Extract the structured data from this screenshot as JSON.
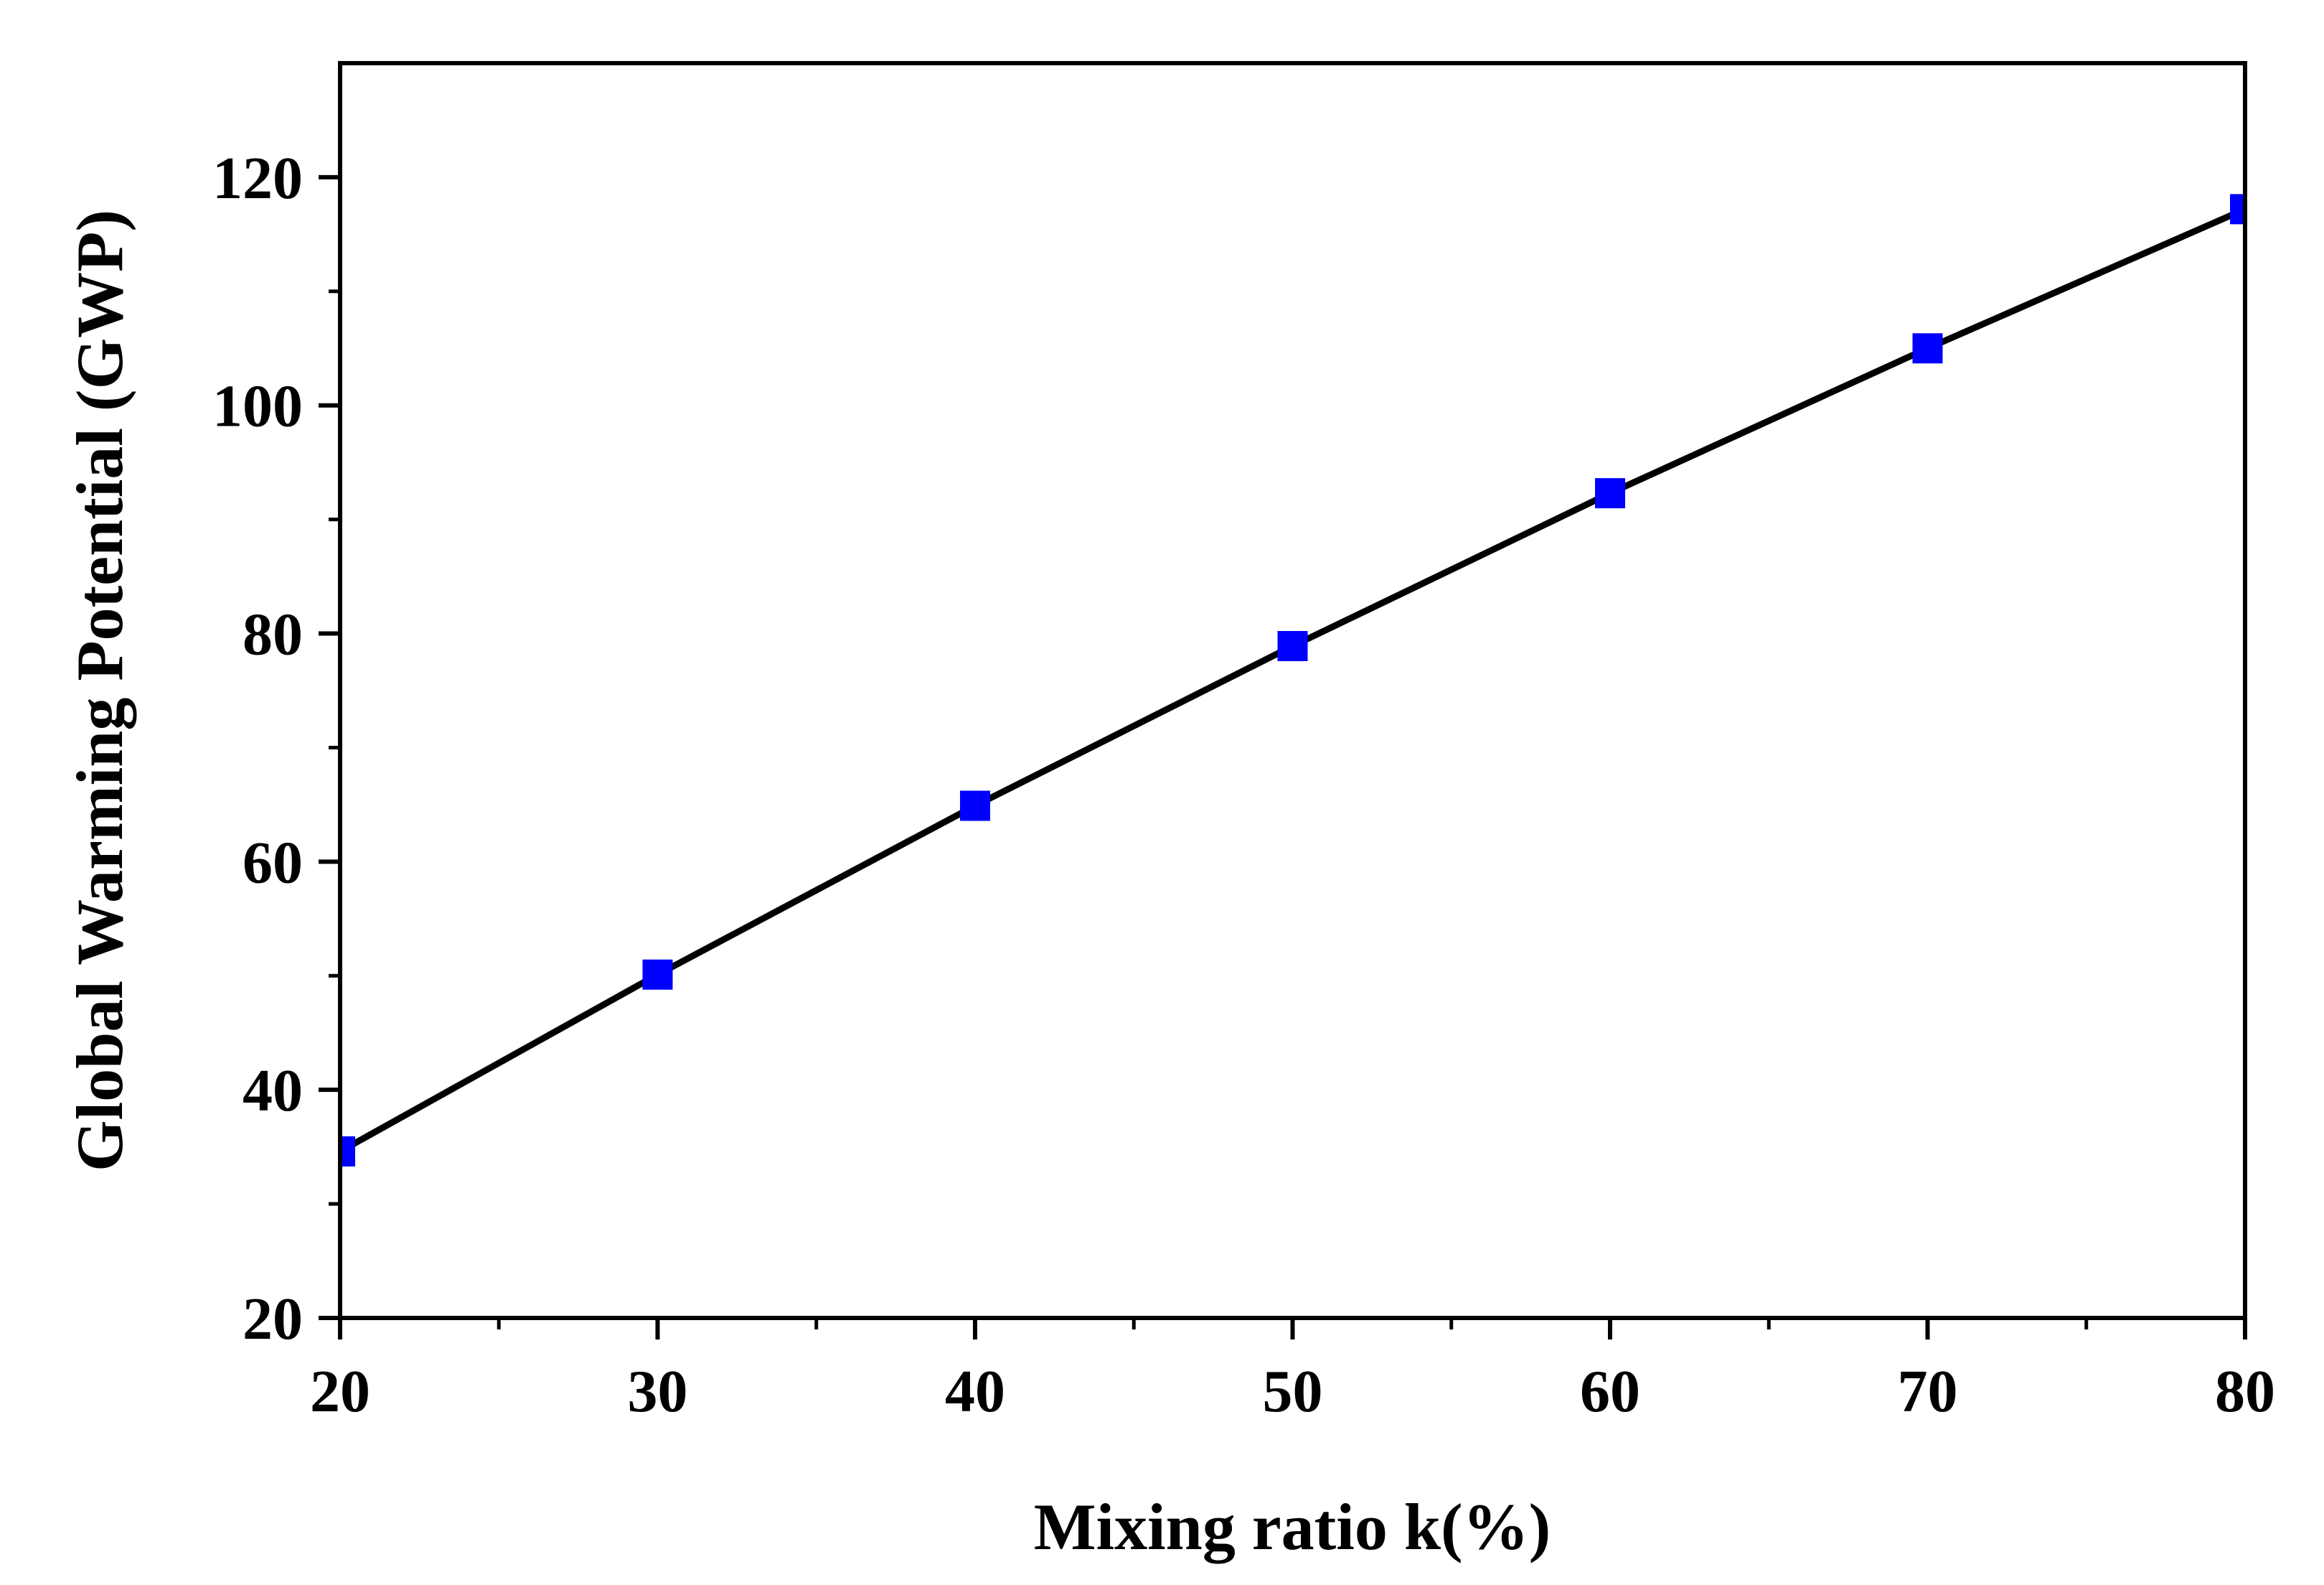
{
  "chart_data": {
    "type": "line",
    "title": "",
    "xlabel": "Mixing ratio k(%)",
    "ylabel": "Global Warming Potential (GWP)",
    "xlim": [
      20,
      80
    ],
    "ylim": [
      20,
      130
    ],
    "x_ticks": [
      20,
      30,
      40,
      50,
      60,
      70,
      80
    ],
    "y_ticks": [
      20,
      40,
      60,
      80,
      100,
      120
    ],
    "x_tick_labels": [
      "20",
      "30",
      "40",
      "50",
      "60",
      "70",
      "80"
    ],
    "y_tick_labels": [
      "20",
      "40",
      "60",
      "80",
      "100",
      "120"
    ],
    "x_minor_step": 5,
    "y_minor_step": 10,
    "legend": "none",
    "grid": false,
    "series": [
      {
        "name": "GWP",
        "line_color": "#000000",
        "marker": "square",
        "marker_color": "#0000ff",
        "x": [
          20,
          30,
          40,
          50,
          60,
          70,
          80
        ],
        "values": [
          34.6,
          50.1,
          64.9,
          78.9,
          92.3,
          105.0,
          117.2
        ]
      }
    ]
  }
}
